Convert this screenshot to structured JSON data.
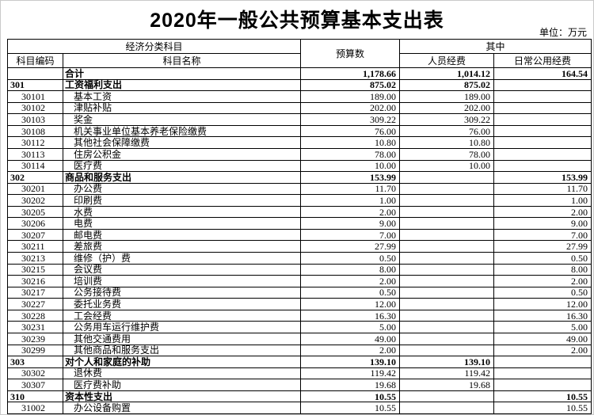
{
  "title": "2020年一般公共预算基本支出表",
  "unit_label": "单位：万元",
  "table": {
    "headers": {
      "economic_class": "经济分类科目",
      "code": "科目编码",
      "name": "科目名称",
      "budget": "预算数",
      "of_which": "其中",
      "personnel": "人员经费",
      "daily_public": "日常公用经费"
    },
    "rows": [
      {
        "code": "",
        "name": "合计",
        "budget": "1,178.66",
        "personnel": "1,014.12",
        "daily": "",
        "level": "total"
      },
      {
        "code": "301",
        "name": "工资福利支出",
        "budget": "875.02",
        "personnel": "875.02",
        "daily": "",
        "level": "category"
      },
      {
        "code": "30101",
        "name": "基本工资",
        "budget": "189.00",
        "personnel": "189.00",
        "daily": "",
        "level": "item"
      },
      {
        "code": "30102",
        "name": "津贴补贴",
        "budget": "202.00",
        "personnel": "202.00",
        "daily": "",
        "level": "item"
      },
      {
        "code": "30103",
        "name": "奖金",
        "budget": "309.22",
        "personnel": "309.22",
        "daily": "",
        "level": "item"
      },
      {
        "code": "30108",
        "name": "机关事业单位基本养老保险缴费",
        "budget": "76.00",
        "personnel": "76.00",
        "daily": "",
        "level": "item"
      },
      {
        "code": "30112",
        "name": "其他社会保障缴费",
        "budget": "10.80",
        "personnel": "10.80",
        "daily": "",
        "level": "item"
      },
      {
        "code": "30113",
        "name": "住房公积金",
        "budget": "78.00",
        "personnel": "78.00",
        "daily": "",
        "level": "item"
      },
      {
        "code": "30114",
        "name": "医疗费",
        "budget": "10.00",
        "personnel": "10.00",
        "daily": "",
        "level": "item"
      },
      {
        "code": "302",
        "name": "商品和服务支出",
        "budget": "153.99",
        "personnel": "",
        "daily": "153.99",
        "level": "category"
      },
      {
        "code": "30201",
        "name": "办公费",
        "budget": "11.70",
        "personnel": "",
        "daily": "11.70",
        "level": "item"
      },
      {
        "code": "30202",
        "name": "印刷费",
        "budget": "1.00",
        "personnel": "",
        "daily": "1.00",
        "level": "item"
      },
      {
        "code": "30205",
        "name": "水费",
        "budget": "2.00",
        "personnel": "",
        "daily": "2.00",
        "level": "item"
      },
      {
        "code": "30206",
        "name": "电费",
        "budget": "9.00",
        "personnel": "",
        "daily": "9.00",
        "level": "item"
      },
      {
        "code": "30207",
        "name": "邮电费",
        "budget": "7.00",
        "personnel": "",
        "daily": "7.00",
        "level": "item"
      },
      {
        "code": "30211",
        "name": "差旅费",
        "budget": "27.99",
        "personnel": "",
        "daily": "27.99",
        "level": "item"
      },
      {
        "code": "30213",
        "name": "维修（护）费",
        "budget": "0.50",
        "personnel": "",
        "daily": "0.50",
        "level": "item"
      },
      {
        "code": "30215",
        "name": "会议费",
        "budget": "8.00",
        "personnel": "",
        "daily": "8.00",
        "level": "item"
      },
      {
        "code": "30216",
        "name": "培训费",
        "budget": "2.00",
        "personnel": "",
        "daily": "2.00",
        "level": "item"
      },
      {
        "code": "30217",
        "name": "公务接待费",
        "budget": "0.50",
        "personnel": "",
        "daily": "0.50",
        "level": "item"
      },
      {
        "code": "30227",
        "name": "委托业务费",
        "budget": "12.00",
        "personnel": "",
        "daily": "12.00",
        "level": "item"
      },
      {
        "code": "30228",
        "name": "工会经费",
        "budget": "16.30",
        "personnel": "",
        "daily": "16.30",
        "level": "item"
      },
      {
        "code": "30231",
        "name": "公务用车运行维护费",
        "budget": "5.00",
        "personnel": "",
        "daily": "5.00",
        "level": "item"
      },
      {
        "code": "30239",
        "name": "其他交通费用",
        "budget": "49.00",
        "personnel": "",
        "daily": "49.00",
        "level": "item"
      },
      {
        "code": "30299",
        "name": "其他商品和服务支出",
        "budget": "2.00",
        "personnel": "",
        "daily": "2.00",
        "level": "item"
      },
      {
        "code": "303",
        "name": "对个人和家庭的补助",
        "budget": "139.10",
        "personnel": "139.10",
        "daily": "",
        "level": "category"
      },
      {
        "code": "30302",
        "name": "退休费",
        "budget": "119.42",
        "personnel": "119.42",
        "daily": "",
        "level": "item"
      },
      {
        "code": "30307",
        "name": "医疗费补助",
        "budget": "19.68",
        "personnel": "19.68",
        "daily": "",
        "level": "item"
      },
      {
        "code": "310",
        "name": "资本性支出",
        "budget": "10.55",
        "personnel": "",
        "daily": "10.55",
        "level": "category"
      },
      {
        "code": "31002",
        "name": "办公设备购置",
        "budget": "10.55",
        "personnel": "",
        "daily": "10.55",
        "level": "item"
      }
    ],
    "total_row_daily_public": "164.54"
  }
}
